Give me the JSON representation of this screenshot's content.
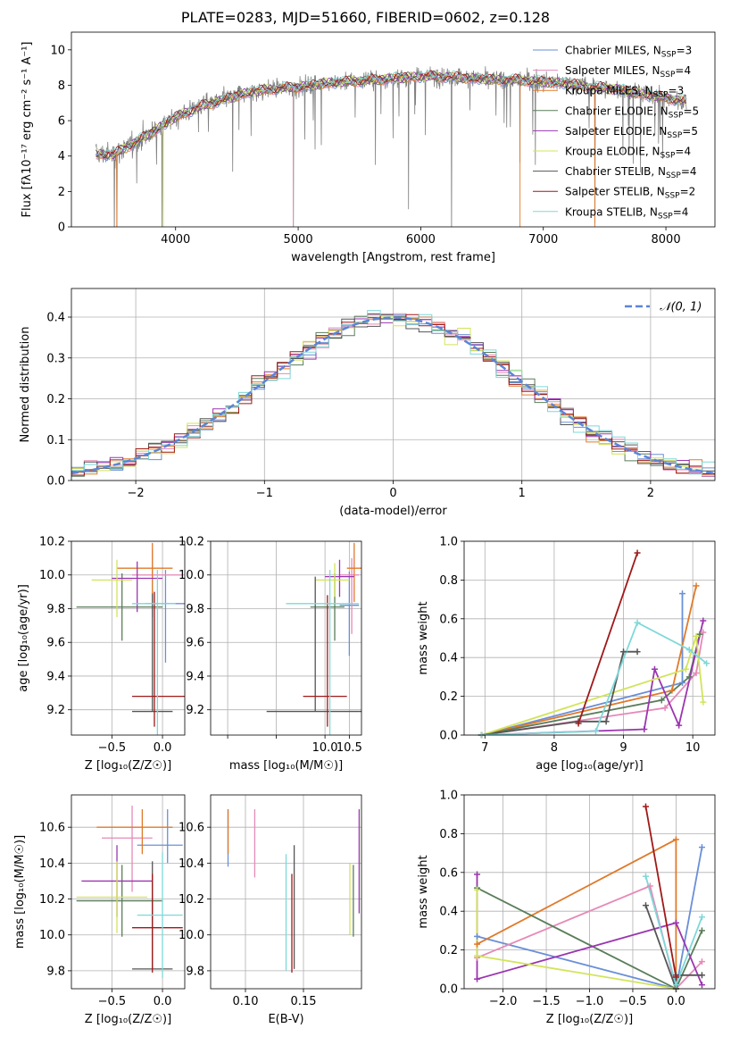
{
  "title": "PLATE=0283, MJD=51660, FIBERID=0602, z=0.128",
  "chart_data": [
    {
      "id": "spectrum",
      "type": "line",
      "xlabel": "wavelength [Angstrom, rest frame]",
      "ylabel": "Flux [fλ10⁻¹⁷ erg cm⁻² s⁻¹ A⁻¹]",
      "xlim": [
        3150,
        8400
      ],
      "ylim": [
        0,
        11
      ],
      "xticks": [
        4000,
        5000,
        6000,
        7000,
        8000
      ],
      "yticks": [
        0,
        2,
        4,
        6,
        8,
        10
      ],
      "grid": false,
      "legend_position": "top-right",
      "data_color": "#808080",
      "continuum": {
        "x": [
          3350,
          3500,
          3650,
          3800,
          4000,
          4200,
          4400,
          4600,
          4800,
          5000,
          5200,
          5400,
          5600,
          5800,
          6000,
          6200,
          6400,
          6600,
          6800,
          7000,
          7200,
          7400,
          7600,
          7800,
          8000,
          8150
        ],
        "y": [
          4.1,
          4.1,
          4.7,
          5.3,
          6.2,
          6.8,
          7.2,
          7.6,
          7.8,
          7.9,
          8.1,
          8.2,
          8.3,
          8.4,
          8.5,
          8.5,
          8.4,
          8.3,
          8.3,
          8.2,
          8.1,
          7.9,
          7.8,
          7.5,
          7.3,
          7.1
        ]
      },
      "series": [
        {
          "name": "Chabrier MILES, N_SSP=3",
          "label": "Chabrier MILES, N",
          "n": "=3",
          "color": "#6a8fd8"
        },
        {
          "name": "Salpeter MILES, N_SSP=4",
          "label": "Salpeter MILES, N",
          "n": "=4",
          "color": "#e58ab8"
        },
        {
          "name": "Kroupa MILES, N_SSP=3",
          "label": "Kroupa MILES, N",
          "n": "=3",
          "color": "#e07a2a"
        },
        {
          "name": "Chabrier ELODIE, N_SSP=5",
          "label": "Chabrier ELODIE, N",
          "n": "=5",
          "color": "#5a7d5a"
        },
        {
          "name": "Salpeter ELODIE, N_SSP=5",
          "label": "Salpeter ELODIE, N",
          "n": "=5",
          "color": "#9b35b0"
        },
        {
          "name": "Kroupa ELODIE, N_SSP=4",
          "label": "Kroupa ELODIE, N",
          "n": "=4",
          "color": "#d2e45a"
        },
        {
          "name": "Chabrier STELIB, N_SSP=4",
          "label": "Chabrier STELIB, N",
          "n": "=4",
          "color": "#555555"
        },
        {
          "name": "Salpeter STELIB, N_SSP=2",
          "label": "Salpeter STELIB, N",
          "n": "=2",
          "color": "#a01818"
        },
        {
          "name": "Kroupa STELIB, N_SSP=4",
          "label": "Kroupa STELIB, N",
          "n": "=4",
          "color": "#7ed8d8"
        }
      ]
    },
    {
      "id": "residuals",
      "type": "line",
      "xlabel": "(data-model)/error",
      "ylabel": "Normed distribution",
      "xlim": [
        -2.5,
        2.5
      ],
      "ylim": [
        0,
        0.47
      ],
      "xticks": [
        -2,
        -1,
        0,
        1,
        2
      ],
      "yticks": [
        0.0,
        0.1,
        0.2,
        0.3,
        0.4
      ],
      "grid": true,
      "legend_position": "top-right",
      "legend": {
        "label": "𝒩(0, 1)",
        "color": "#5b85d6",
        "style": "dashed"
      },
      "bins": 50
    },
    {
      "id": "age-vs-metallicity",
      "type": "scatter",
      "xlabel": "Z [log₁₀(Z/Z☉)]",
      "ylabel": "age  [log₁₀(age/yr)]",
      "xlim": [
        -0.9,
        0.22
      ],
      "ylim": [
        9.05,
        10.2
      ],
      "xticks": [
        -0.5,
        0.0
      ],
      "yticks": [
        9.2,
        9.4,
        9.6,
        9.8,
        10.0,
        10.2
      ],
      "grid": true,
      "points": [
        {
          "series": 0,
          "x": 0.03,
          "y": 9.83,
          "xerr": [
            0.2,
            0.2
          ],
          "yerr": [
            0.35,
            0.2
          ]
        },
        {
          "series": 1,
          "x": -0.1,
          "y": 10.0,
          "xerr": [
            0.2,
            0.3
          ],
          "yerr": [
            0.25,
            0.15
          ]
        },
        {
          "series": 2,
          "x": -0.1,
          "y": 10.04,
          "xerr": [
            0.35,
            0.2
          ],
          "yerr": [
            0.2,
            0.15
          ]
        },
        {
          "series": 3,
          "x": -0.4,
          "y": 9.81,
          "xerr": [
            0.45,
            0.4
          ],
          "yerr": [
            0.2,
            0.2
          ]
        },
        {
          "series": 4,
          "x": -0.25,
          "y": 9.98,
          "xerr": [
            0.25,
            0.25
          ],
          "yerr": [
            0.2,
            0.1
          ]
        },
        {
          "series": 5,
          "x": -0.45,
          "y": 9.97,
          "xerr": [
            0.25,
            0.15
          ],
          "yerr": [
            0.22,
            0.12
          ]
        },
        {
          "series": 6,
          "x": -0.1,
          "y": 9.19,
          "xerr": [
            0.2,
            0.2
          ],
          "yerr": [
            0.0,
            0.7
          ]
        },
        {
          "series": 7,
          "x": -0.08,
          "y": 9.28,
          "xerr": [
            0.22,
            0.3
          ],
          "yerr": [
            0.18,
            0.62
          ]
        },
        {
          "series": 8,
          "x": -0.05,
          "y": 9.83,
          "xerr": [
            0.25,
            0.18
          ],
          "yerr": [
            0.8,
            0.2
          ]
        }
      ]
    },
    {
      "id": "age-vs-mass",
      "type": "scatter",
      "xlabel": "mass [log₁₀(M/M☉)]",
      "ylabel": "",
      "xlim": [
        7.65,
        10.75
      ],
      "ylim": [
        9.05,
        10.2
      ],
      "xticks": [
        8.0,
        9.0,
        10.0,
        10.5
      ],
      "xticklabels": [
        "",
        "",
        "10.0",
        "10.5"
      ],
      "yticks": [
        9.2,
        9.4,
        9.6,
        9.8,
        10.0,
        10.2
      ],
      "grid": true,
      "points": [
        {
          "series": 0,
          "x": 10.5,
          "y": 9.82,
          "xerr": [
            0.2,
            0.2
          ],
          "yerr": [
            0.3,
            0.2
          ]
        },
        {
          "series": 1,
          "x": 10.55,
          "y": 10.0,
          "xerr": [
            0.25,
            0.15
          ],
          "yerr": [
            0.35,
            0.1
          ]
        },
        {
          "series": 2,
          "x": 10.6,
          "y": 10.04,
          "xerr": [
            0.15,
            0.15
          ],
          "yerr": [
            0.2,
            0.15
          ]
        },
        {
          "series": 3,
          "x": 10.2,
          "y": 9.81,
          "xerr": [
            0.5,
            0.2
          ],
          "yerr": [
            0.2,
            0.2
          ]
        },
        {
          "series": 4,
          "x": 10.3,
          "y": 9.99,
          "xerr": [
            0.3,
            0.3
          ],
          "yerr": [
            0.12,
            0.1
          ]
        },
        {
          "series": 5,
          "x": 10.2,
          "y": 9.97,
          "xerr": [
            0.4,
            0.3
          ],
          "yerr": [
            0.1,
            0.1
          ]
        },
        {
          "series": 6,
          "x": 9.8,
          "y": 9.19,
          "xerr": [
            1.0,
            1.0
          ],
          "yerr": [
            0.0,
            0.8
          ]
        },
        {
          "series": 7,
          "x": 10.05,
          "y": 9.28,
          "xerr": [
            0.5,
            0.4
          ],
          "yerr": [
            0.18,
            0.6
          ]
        },
        {
          "series": 8,
          "x": 10.1,
          "y": 9.83,
          "xerr": [
            0.9,
            0.6
          ],
          "yerr": [
            0.8,
            0.2
          ]
        }
      ]
    },
    {
      "id": "weight-vs-age",
      "type": "line",
      "xlabel": "age  [log₁₀(age/yr)]",
      "ylabel": "mass weight",
      "xlim": [
        6.7,
        10.32
      ],
      "ylim": [
        0,
        1
      ],
      "xticks": [
        7,
        8,
        9,
        10
      ],
      "yticks": [
        0.0,
        0.2,
        0.4,
        0.6,
        0.8,
        1.0
      ],
      "grid": true,
      "series": [
        {
          "series": 0,
          "x": [
            6.95,
            9.85,
            9.85
          ],
          "y": [
            0.0,
            0.27,
            0.73
          ]
        },
        {
          "series": 1,
          "x": [
            6.95,
            9.6,
            10.05,
            10.15
          ],
          "y": [
            0.0,
            0.14,
            0.32,
            0.53
          ]
        },
        {
          "series": 2,
          "x": [
            6.95,
            9.7,
            10.05
          ],
          "y": [
            0.0,
            0.23,
            0.77
          ]
        },
        {
          "series": 3,
          "x": [
            6.95,
            9.55,
            9.95,
            10.1
          ],
          "y": [
            0.0,
            0.18,
            0.3,
            0.52
          ]
        },
        {
          "series": 4,
          "x": [
            6.95,
            9.3,
            9.45,
            9.8,
            10.15
          ],
          "y": [
            0.0,
            0.03,
            0.34,
            0.05,
            0.59
          ]
        },
        {
          "series": 5,
          "x": [
            6.95,
            9.9,
            10.05,
            10.15
          ],
          "y": [
            0.0,
            0.34,
            0.51,
            0.17
          ]
        },
        {
          "series": 6,
          "x": [
            6.95,
            8.35,
            8.75,
            9.0,
            9.2
          ],
          "y": [
            0.0,
            0.07,
            0.07,
            0.43,
            0.43
          ]
        },
        {
          "series": 7,
          "x": [
            8.35,
            9.2
          ],
          "y": [
            0.06,
            0.94
          ]
        },
        {
          "series": 8,
          "x": [
            6.95,
            8.6,
            9.2,
            9.95,
            10.2
          ],
          "y": [
            0.0,
            0.02,
            0.58,
            0.44,
            0.37
          ]
        }
      ]
    },
    {
      "id": "mass-vs-metallicity",
      "type": "scatter",
      "xlabel": "Z [log₁₀(Z/Z☉)]",
      "ylabel": "mass [log₁₀(M/M☉)]",
      "xlim": [
        -0.9,
        0.22
      ],
      "ylim": [
        9.7,
        10.78
      ],
      "xticks": [
        -0.5,
        0.0
      ],
      "yticks": [
        9.8,
        10.0,
        10.2,
        10.4,
        10.6
      ],
      "grid": true,
      "points": [
        {
          "series": 0,
          "x": 0.05,
          "y": 10.5,
          "xerr": [
            0.3,
            0.15
          ],
          "yerr": [
            0.1,
            0.2
          ]
        },
        {
          "series": 1,
          "x": -0.3,
          "y": 10.54,
          "xerr": [
            0.3,
            0.2
          ],
          "yerr": [
            0.3,
            0.18
          ]
        },
        {
          "series": 2,
          "x": -0.2,
          "y": 10.6,
          "xerr": [
            0.45,
            0.3
          ],
          "yerr": [
            0.15,
            0.1
          ]
        },
        {
          "series": 3,
          "x": -0.4,
          "y": 10.19,
          "xerr": [
            0.45,
            0.4
          ],
          "yerr": [
            0.2,
            0.2
          ]
        },
        {
          "series": 4,
          "x": -0.45,
          "y": 10.3,
          "xerr": [
            0.35,
            0.35
          ],
          "yerr": [
            0.2,
            0.2
          ]
        },
        {
          "series": 5,
          "x": -0.45,
          "y": 10.21,
          "xerr": [
            0.4,
            0.3
          ],
          "yerr": [
            0.2,
            0.2
          ]
        },
        {
          "series": 6,
          "x": -0.1,
          "y": 9.81,
          "xerr": [
            0.2,
            0.2
          ],
          "yerr": [
            0.0,
            0.6
          ]
        },
        {
          "series": 7,
          "x": -0.1,
          "y": 10.04,
          "xerr": [
            0.2,
            0.3
          ],
          "yerr": [
            0.25,
            0.3
          ]
        },
        {
          "series": 8,
          "x": 0.0,
          "y": 10.11,
          "xerr": [
            0.25,
            0.2
          ],
          "yerr": [
            0.35,
            0.35
          ]
        }
      ]
    },
    {
      "id": "mass-vs-ebv",
      "type": "scatter",
      "xlabel": "E(B-V)",
      "ylabel": "",
      "xlim": [
        0.07,
        0.2
      ],
      "ylim": [
        9.7,
        10.78
      ],
      "xticks": [
        0.1,
        0.15
      ],
      "yticks": [
        9.8,
        10.0,
        10.2,
        10.4,
        10.6
      ],
      "grid": true,
      "points": [
        {
          "series": 0,
          "x": 0.085,
          "y": 10.5,
          "yerr": [
            0.12,
            0.2
          ]
        },
        {
          "series": 1,
          "x": 0.108,
          "y": 10.5,
          "yerr": [
            0.18,
            0.2
          ]
        },
        {
          "series": 2,
          "x": 0.085,
          "y": 10.6,
          "yerr": [
            0.15,
            0.1
          ]
        },
        {
          "series": 3,
          "x": 0.193,
          "y": 10.19,
          "yerr": [
            0.2,
            0.2
          ]
        },
        {
          "series": 4,
          "x": 0.198,
          "y": 10.3,
          "yerr": [
            0.18,
            0.4
          ]
        },
        {
          "series": 5,
          "x": 0.19,
          "y": 10.2,
          "yerr": [
            0.2,
            0.2
          ]
        },
        {
          "series": 6,
          "x": 0.142,
          "y": 9.81,
          "yerr": [
            0.0,
            0.69
          ]
        },
        {
          "series": 7,
          "x": 0.14,
          "y": 10.04,
          "yerr": [
            0.25,
            0.3
          ]
        },
        {
          "series": 8,
          "x": 0.135,
          "y": 10.1,
          "yerr": [
            0.3,
            0.35
          ]
        }
      ]
    },
    {
      "id": "weight-vs-metallicity",
      "type": "line",
      "xlabel": "Z [log₁₀(Z/Z☉)]",
      "ylabel": "mass weight",
      "xlim": [
        -2.45,
        0.45
      ],
      "ylim": [
        0,
        1
      ],
      "xticks": [
        -2.0,
        -1.5,
        -1.0,
        -0.5,
        0.0
      ],
      "yticks": [
        0.0,
        0.2,
        0.4,
        0.6,
        0.8,
        1.0
      ],
      "grid": true,
      "series": [
        {
          "series": 0,
          "x": [
            -2.3,
            0.0,
            0.3
          ],
          "y": [
            0.27,
            0.0,
            0.73
          ]
        },
        {
          "series": 1,
          "x": [
            -2.3,
            -0.3,
            0.0,
            0.3
          ],
          "y": [
            0.16,
            0.53,
            0.0,
            0.14
          ]
        },
        {
          "series": 2,
          "x": [
            -2.3,
            0.0,
            0.0
          ],
          "y": [
            0.23,
            0.77,
            0.0
          ]
        },
        {
          "series": 3,
          "x": [
            -2.3,
            0.0,
            0.3
          ],
          "y": [
            0.52,
            0.0,
            0.3
          ]
        },
        {
          "series": 4,
          "x": [
            -2.3,
            -2.3,
            0.0,
            0.3
          ],
          "y": [
            0.59,
            0.05,
            0.34,
            0.02
          ]
        },
        {
          "series": 5,
          "x": [
            -2.3,
            -2.3,
            0.0
          ],
          "y": [
            0.51,
            0.17,
            0.0
          ]
        },
        {
          "series": 6,
          "x": [
            -0.35,
            0.0,
            0.0,
            0.3
          ],
          "y": [
            0.43,
            0.0,
            0.07,
            0.07
          ]
        },
        {
          "series": 7,
          "x": [
            -0.35,
            0.0
          ],
          "y": [
            0.94,
            0.06
          ]
        },
        {
          "series": 8,
          "x": [
            -0.35,
            0.0,
            0.3
          ],
          "y": [
            0.58,
            0.02,
            0.37
          ]
        }
      ]
    }
  ]
}
